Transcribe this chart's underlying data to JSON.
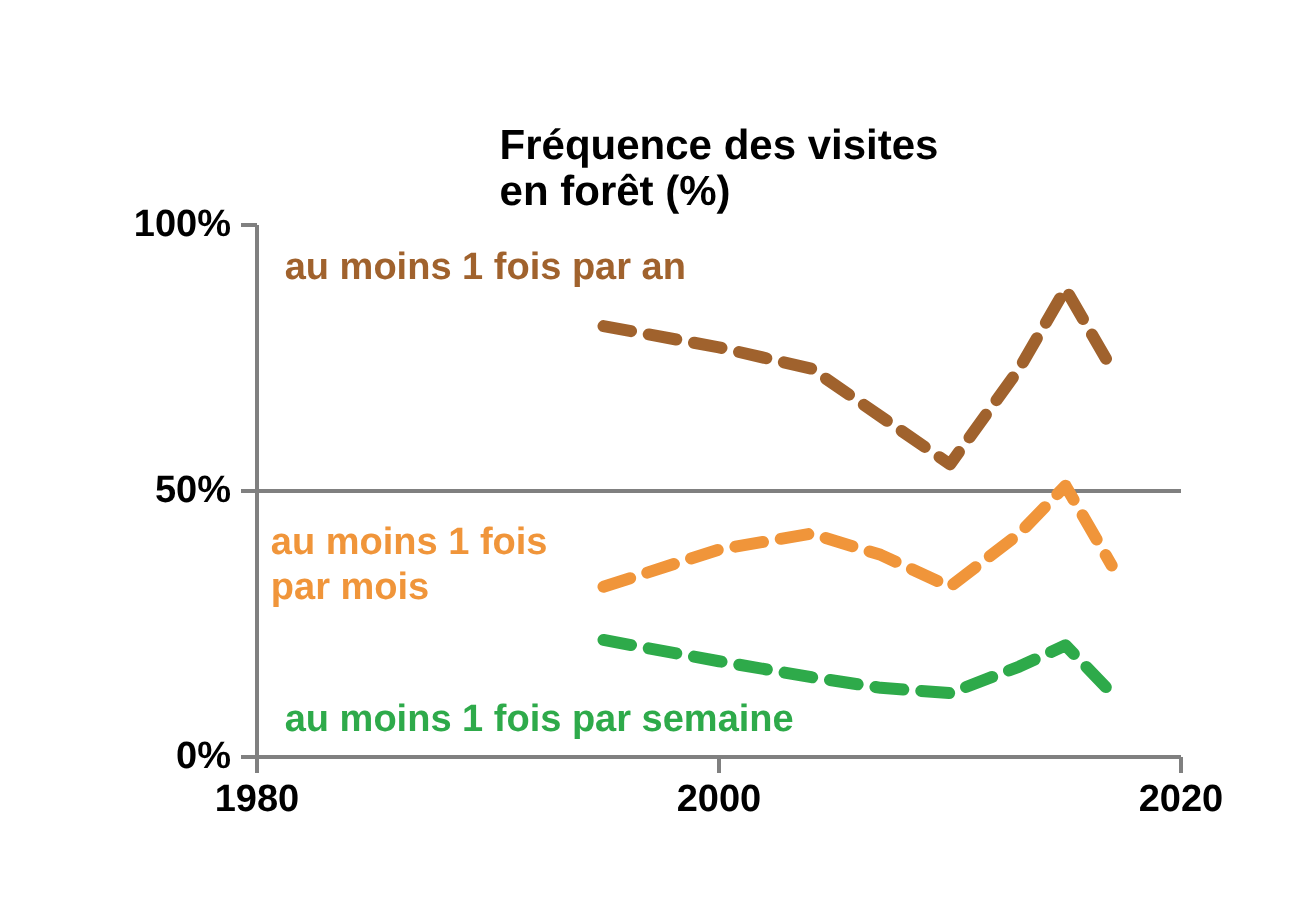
{
  "chart_data": {
    "type": "line",
    "title": "Fréquence des visites\nen forêt (%)",
    "x": [
      1995,
      2000,
      2004,
      2007,
      2010,
      2013,
      2015,
      2017
    ],
    "series": [
      {
        "name": "au moins 1 fois par an",
        "color": "#a0622d",
        "values": [
          81,
          77,
          73,
          64,
          55,
          73,
          88,
          73
        ]
      },
      {
        "name": "au moins 1 fois\npar mois",
        "color": "#f0953a",
        "values": [
          32,
          39,
          42,
          38,
          32,
          42,
          51,
          36
        ]
      },
      {
        "name": "au moins 1 fois par semaine",
        "color": "#2eaa4a",
        "values": [
          22,
          18,
          15,
          13,
          12,
          17,
          21,
          12
        ]
      }
    ],
    "xlim": [
      1980,
      2020
    ],
    "xticks": [
      1980,
      2000,
      2020
    ],
    "ylim": [
      0,
      100
    ],
    "yticks": [
      {
        "value": 0,
        "label": "0%"
      },
      {
        "value": 50,
        "label": "50%"
      },
      {
        "value": 100,
        "label": "100%"
      }
    ],
    "grid": "y",
    "marker": "none",
    "line_style": "dashed"
  }
}
